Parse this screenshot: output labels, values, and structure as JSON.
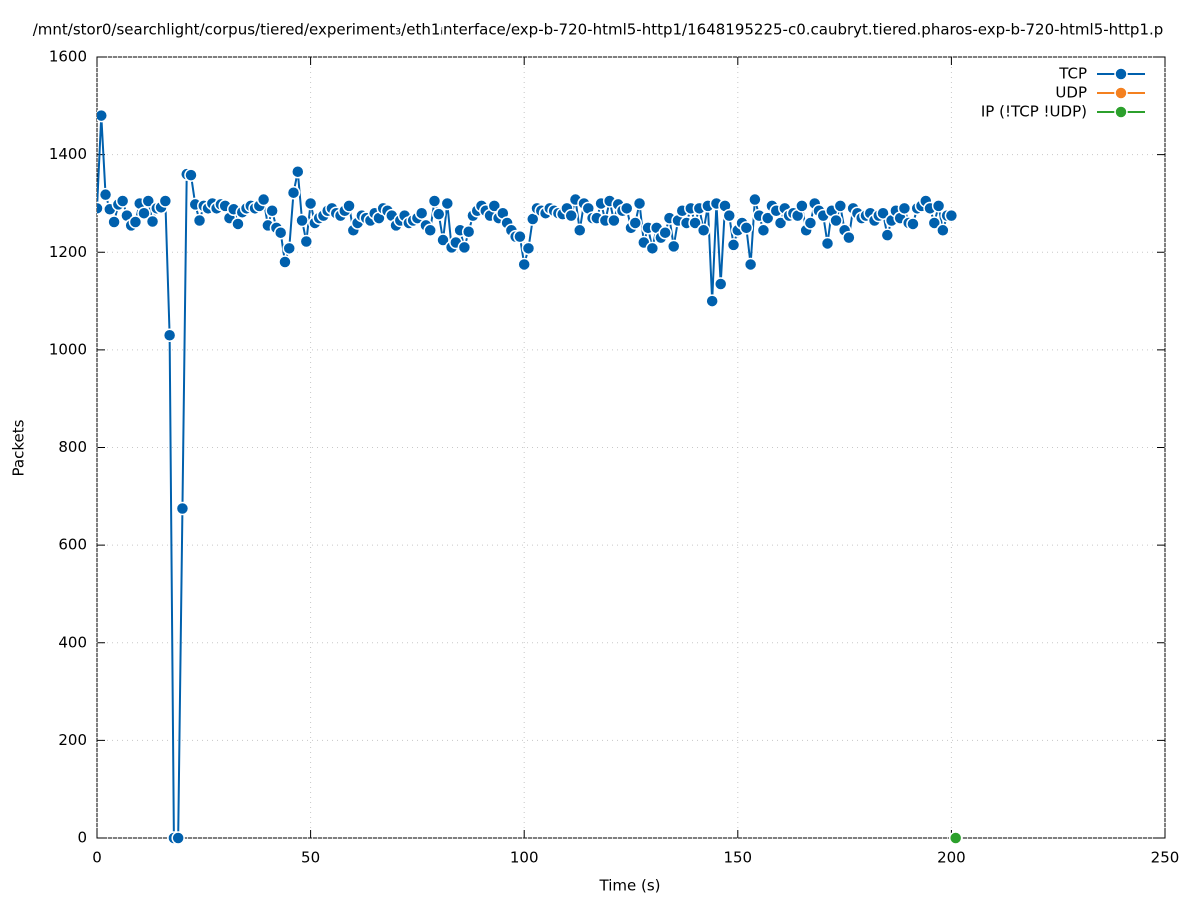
{
  "chart_data": {
    "type": "line",
    "title": "/mnt/stor0/searchlight/corpus/tiered/experiment₃/eth1ᵢnterface/exp-b-720-html5-http1/1648195225-c0.caubryt.tiered.pharos-exp-b-720-html5-http1.p",
    "xlabel": "Time (s)",
    "ylabel": "Packets",
    "xlim": [
      0,
      250
    ],
    "xticks": [
      0,
      50,
      100,
      150,
      200,
      250
    ],
    "ylim": [
      0,
      1600
    ],
    "yticks": [
      0,
      200,
      400,
      600,
      800,
      1000,
      1200,
      1400,
      1600
    ],
    "grid": true,
    "legend": "top-right",
    "series": [
      {
        "name": "TCP",
        "color": "#0060ad",
        "x": [
          0,
          1,
          2,
          3,
          4,
          5,
          6,
          7,
          8,
          9,
          10,
          11,
          12,
          13,
          14,
          15,
          16,
          17,
          18,
          19,
          20,
          21,
          22,
          23,
          24,
          25,
          26,
          27,
          28,
          29,
          30,
          31,
          32,
          33,
          34,
          35,
          36,
          37,
          38,
          39,
          40,
          41,
          42,
          43,
          44,
          45,
          46,
          47,
          48,
          49,
          50,
          51,
          52,
          53,
          54,
          55,
          56,
          57,
          58,
          59,
          60,
          61,
          62,
          63,
          64,
          65,
          66,
          67,
          68,
          69,
          70,
          71,
          72,
          73,
          74,
          75,
          76,
          77,
          78,
          79,
          80,
          81,
          82,
          83,
          84,
          85,
          86,
          87,
          88,
          89,
          90,
          91,
          92,
          93,
          94,
          95,
          96,
          97,
          98,
          99,
          100,
          101,
          102,
          103,
          104,
          105,
          106,
          107,
          108,
          109,
          110,
          111,
          112,
          113,
          114,
          115,
          116,
          117,
          118,
          119,
          120,
          121,
          122,
          123,
          124,
          125,
          126,
          127,
          128,
          129,
          130,
          131,
          132,
          133,
          134,
          135,
          136,
          137,
          138,
          139,
          140,
          141,
          142,
          143,
          144,
          145,
          146,
          147,
          148,
          149,
          150,
          151,
          152,
          153,
          154,
          155,
          156,
          157,
          158,
          159,
          160,
          161,
          162,
          163,
          164,
          165,
          166,
          167,
          168,
          169,
          170,
          171,
          172,
          173,
          174,
          175,
          176,
          177,
          178,
          179,
          180,
          181,
          182,
          183,
          184,
          185,
          186,
          187,
          188,
          189,
          190,
          191,
          192,
          193,
          194,
          195,
          196,
          197,
          198,
          199,
          200
        ],
        "values": [
          1290,
          1480,
          1318,
          1288,
          1262,
          1298,
          1305,
          1275,
          1255,
          1262,
          1300,
          1280,
          1305,
          1263,
          1290,
          1292,
          1305,
          1030,
          0,
          0,
          675,
          1360,
          1358,
          1298,
          1265,
          1295,
          1290,
          1300,
          1290,
          1298,
          1295,
          1270,
          1288,
          1258,
          1282,
          1290,
          1295,
          1290,
          1295,
          1308,
          1255,
          1285,
          1250,
          1240,
          1180,
          1208,
          1322,
          1365,
          1265,
          1222,
          1300,
          1260,
          1270,
          1275,
          1285,
          1290,
          1280,
          1275,
          1285,
          1295,
          1245,
          1260,
          1275,
          1270,
          1265,
          1280,
          1270,
          1290,
          1285,
          1275,
          1255,
          1265,
          1275,
          1260,
          1265,
          1270,
          1280,
          1255,
          1245,
          1305,
          1278,
          1225,
          1300,
          1210,
          1220,
          1245,
          1210,
          1242,
          1275,
          1285,
          1295,
          1285,
          1275,
          1295,
          1270,
          1280,
          1260,
          1245,
          1232,
          1232,
          1175,
          1208,
          1268,
          1290,
          1285,
          1280,
          1290,
          1285,
          1280,
          1278,
          1290,
          1275,
          1308,
          1245,
          1300,
          1290,
          1270,
          1270,
          1300,
          1265,
          1305,
          1265,
          1298,
          1285,
          1290,
          1250,
          1260,
          1300,
          1220,
          1250,
          1208,
          1250,
          1230,
          1240,
          1270,
          1212,
          1265,
          1285,
          1260,
          1290,
          1260,
          1290,
          1245,
          1295,
          1100,
          1300,
          1135,
          1295,
          1275,
          1215,
          1245,
          1260,
          1250,
          1175,
          1308,
          1275,
          1245,
          1270,
          1295,
          1285,
          1260,
          1290,
          1275,
          1280,
          1275,
          1295,
          1245,
          1260,
          1300,
          1285,
          1275,
          1218,
          1285,
          1265,
          1295,
          1245,
          1230,
          1290,
          1280,
          1270,
          1275,
          1280,
          1265,
          1275,
          1280,
          1235,
          1265,
          1285,
          1270,
          1290,
          1260,
          1258,
          1290,
          1295,
          1305,
          1290,
          1260,
          1295,
          1245,
          1275,
          1275
        ]
      },
      {
        "name": "UDP",
        "color": "#f4801f",
        "x": [],
        "values": []
      },
      {
        "name": "IP (!TCP  !UDP)",
        "color": "#2ca02c",
        "x": [
          201
        ],
        "values": [
          0
        ]
      }
    ]
  }
}
